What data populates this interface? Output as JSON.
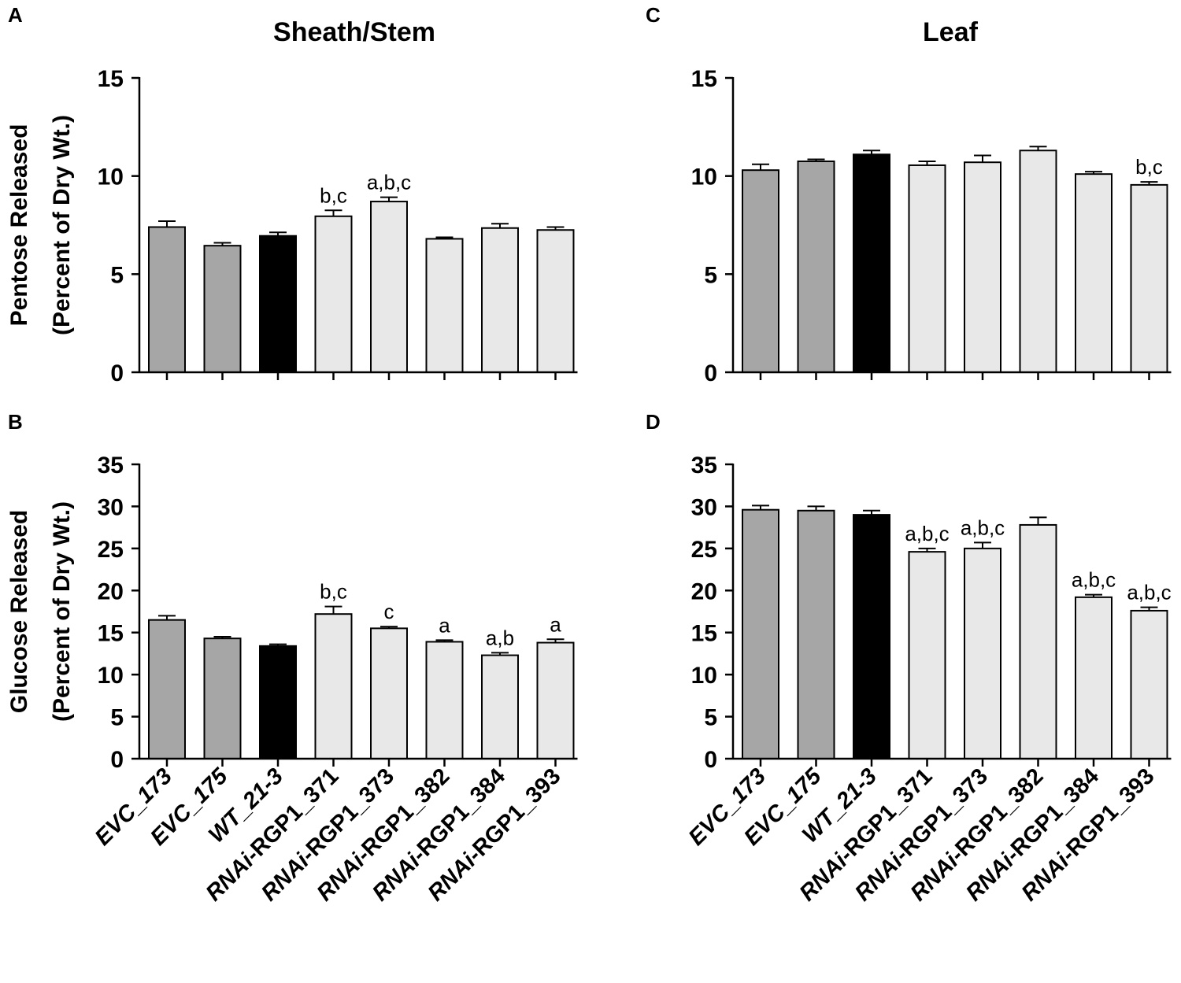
{
  "figure": {
    "ylabel_line1_top": "Pentose Released",
    "ylabel_line2_top": "(Percent of Dry Wt.)",
    "ylabel_line1_bottom": "Glucose Released",
    "ylabel_line2_bottom": "(Percent of Dry Wt.)"
  },
  "colors": {
    "evc": "#a6a6a6",
    "wt": "#000000",
    "rnai": "#e8e8e8"
  },
  "x_labels": [
    {
      "prefix": "",
      "suffix": "EVC_173"
    },
    {
      "prefix": "",
      "suffix": "EVC_175"
    },
    {
      "prefix": "",
      "suffix": "WT_21-3"
    },
    {
      "prefix": "RNAi",
      "suffix": "-RGP1_371"
    },
    {
      "prefix": "RNAi",
      "suffix": "-RGP1_373"
    },
    {
      "prefix": "RNAi",
      "suffix": "-RGP1_382"
    },
    {
      "prefix": "RNAi",
      "suffix": "-RGP1_384"
    },
    {
      "prefix": "RNAi",
      "suffix": "-RGP1_393"
    }
  ],
  "chart_data": [
    {
      "type": "bar",
      "panel": "A",
      "title": "Sheath/Stem",
      "ylabel": "Pentose Released (Percent of Dry Wt.)",
      "ylim": [
        0,
        15
      ],
      "yticks": [
        0,
        5,
        10,
        15
      ],
      "categories": [
        "EVC_173",
        "EVC_175",
        "WT_21-3",
        "RNAi-RGP1_371",
        "RNAi-RGP1_373",
        "RNAi-RGP1_382",
        "RNAi-RGP1_384",
        "RNAi-RGP1_393"
      ],
      "groups": [
        "evc",
        "evc",
        "wt",
        "rnai",
        "rnai",
        "rnai",
        "rnai",
        "rnai"
      ],
      "values": [
        7.4,
        6.45,
        6.95,
        7.95,
        8.7,
        6.8,
        7.35,
        7.25
      ],
      "errors": [
        0.3,
        0.15,
        0.18,
        0.3,
        0.22,
        0.08,
        0.22,
        0.15
      ],
      "annotations": [
        "",
        "",
        "",
        "b,c",
        "a,b,c",
        "",
        "",
        ""
      ]
    },
    {
      "type": "bar",
      "panel": "B",
      "title": "",
      "ylabel": "Glucose Released (Percent of Dry Wt.)",
      "ylim": [
        0,
        35
      ],
      "yticks": [
        0,
        5,
        10,
        15,
        20,
        25,
        30,
        35
      ],
      "categories": [
        "EVC_173",
        "EVC_175",
        "WT_21-3",
        "RNAi-RGP1_371",
        "RNAi-RGP1_373",
        "RNAi-RGP1_382",
        "RNAi-RGP1_384",
        "RNAi-RGP1_393"
      ],
      "groups": [
        "evc",
        "evc",
        "wt",
        "rnai",
        "rnai",
        "rnai",
        "rnai",
        "rnai"
      ],
      "values": [
        16.5,
        14.3,
        13.4,
        17.2,
        15.5,
        13.9,
        12.3,
        13.8
      ],
      "errors": [
        0.5,
        0.2,
        0.2,
        0.9,
        0.2,
        0.2,
        0.3,
        0.4
      ],
      "annotations": [
        "",
        "",
        "",
        "b,c",
        "c",
        "a",
        "a,b",
        "a"
      ]
    },
    {
      "type": "bar",
      "panel": "C",
      "title": "Leaf",
      "ylabel": "",
      "ylim": [
        0,
        15
      ],
      "yticks": [
        0,
        5,
        10,
        15
      ],
      "categories": [
        "EVC_173",
        "EVC_175",
        "WT_21-3",
        "RNAi-RGP1_371",
        "RNAi-RGP1_373",
        "RNAi-RGP1_382",
        "RNAi-RGP1_384",
        "RNAi-RGP1_393"
      ],
      "groups": [
        "evc",
        "evc",
        "wt",
        "rnai",
        "rnai",
        "rnai",
        "rnai",
        "rnai"
      ],
      "values": [
        10.3,
        10.75,
        11.1,
        10.55,
        10.7,
        11.3,
        10.1,
        9.55
      ],
      "errors": [
        0.3,
        0.1,
        0.2,
        0.2,
        0.35,
        0.2,
        0.12,
        0.15
      ],
      "annotations": [
        "",
        "",
        "",
        "",
        "",
        "",
        "",
        "b,c"
      ]
    },
    {
      "type": "bar",
      "panel": "D",
      "title": "",
      "ylabel": "",
      "ylim": [
        0,
        35
      ],
      "yticks": [
        0,
        5,
        10,
        15,
        20,
        25,
        30,
        35
      ],
      "categories": [
        "EVC_173",
        "EVC_175",
        "WT_21-3",
        "RNAi-RGP1_371",
        "RNAi-RGP1_373",
        "RNAi-RGP1_382",
        "RNAi-RGP1_384",
        "RNAi-RGP1_393"
      ],
      "groups": [
        "evc",
        "evc",
        "wt",
        "rnai",
        "rnai",
        "rnai",
        "rnai",
        "rnai"
      ],
      "values": [
        29.6,
        29.5,
        29.0,
        24.6,
        25.0,
        27.8,
        19.2,
        17.6
      ],
      "errors": [
        0.5,
        0.5,
        0.5,
        0.4,
        0.7,
        0.9,
        0.3,
        0.4
      ],
      "annotations": [
        "",
        "",
        "",
        "a,b,c",
        "a,b,c",
        "",
        "a,b,c",
        "a,b,c"
      ]
    }
  ]
}
